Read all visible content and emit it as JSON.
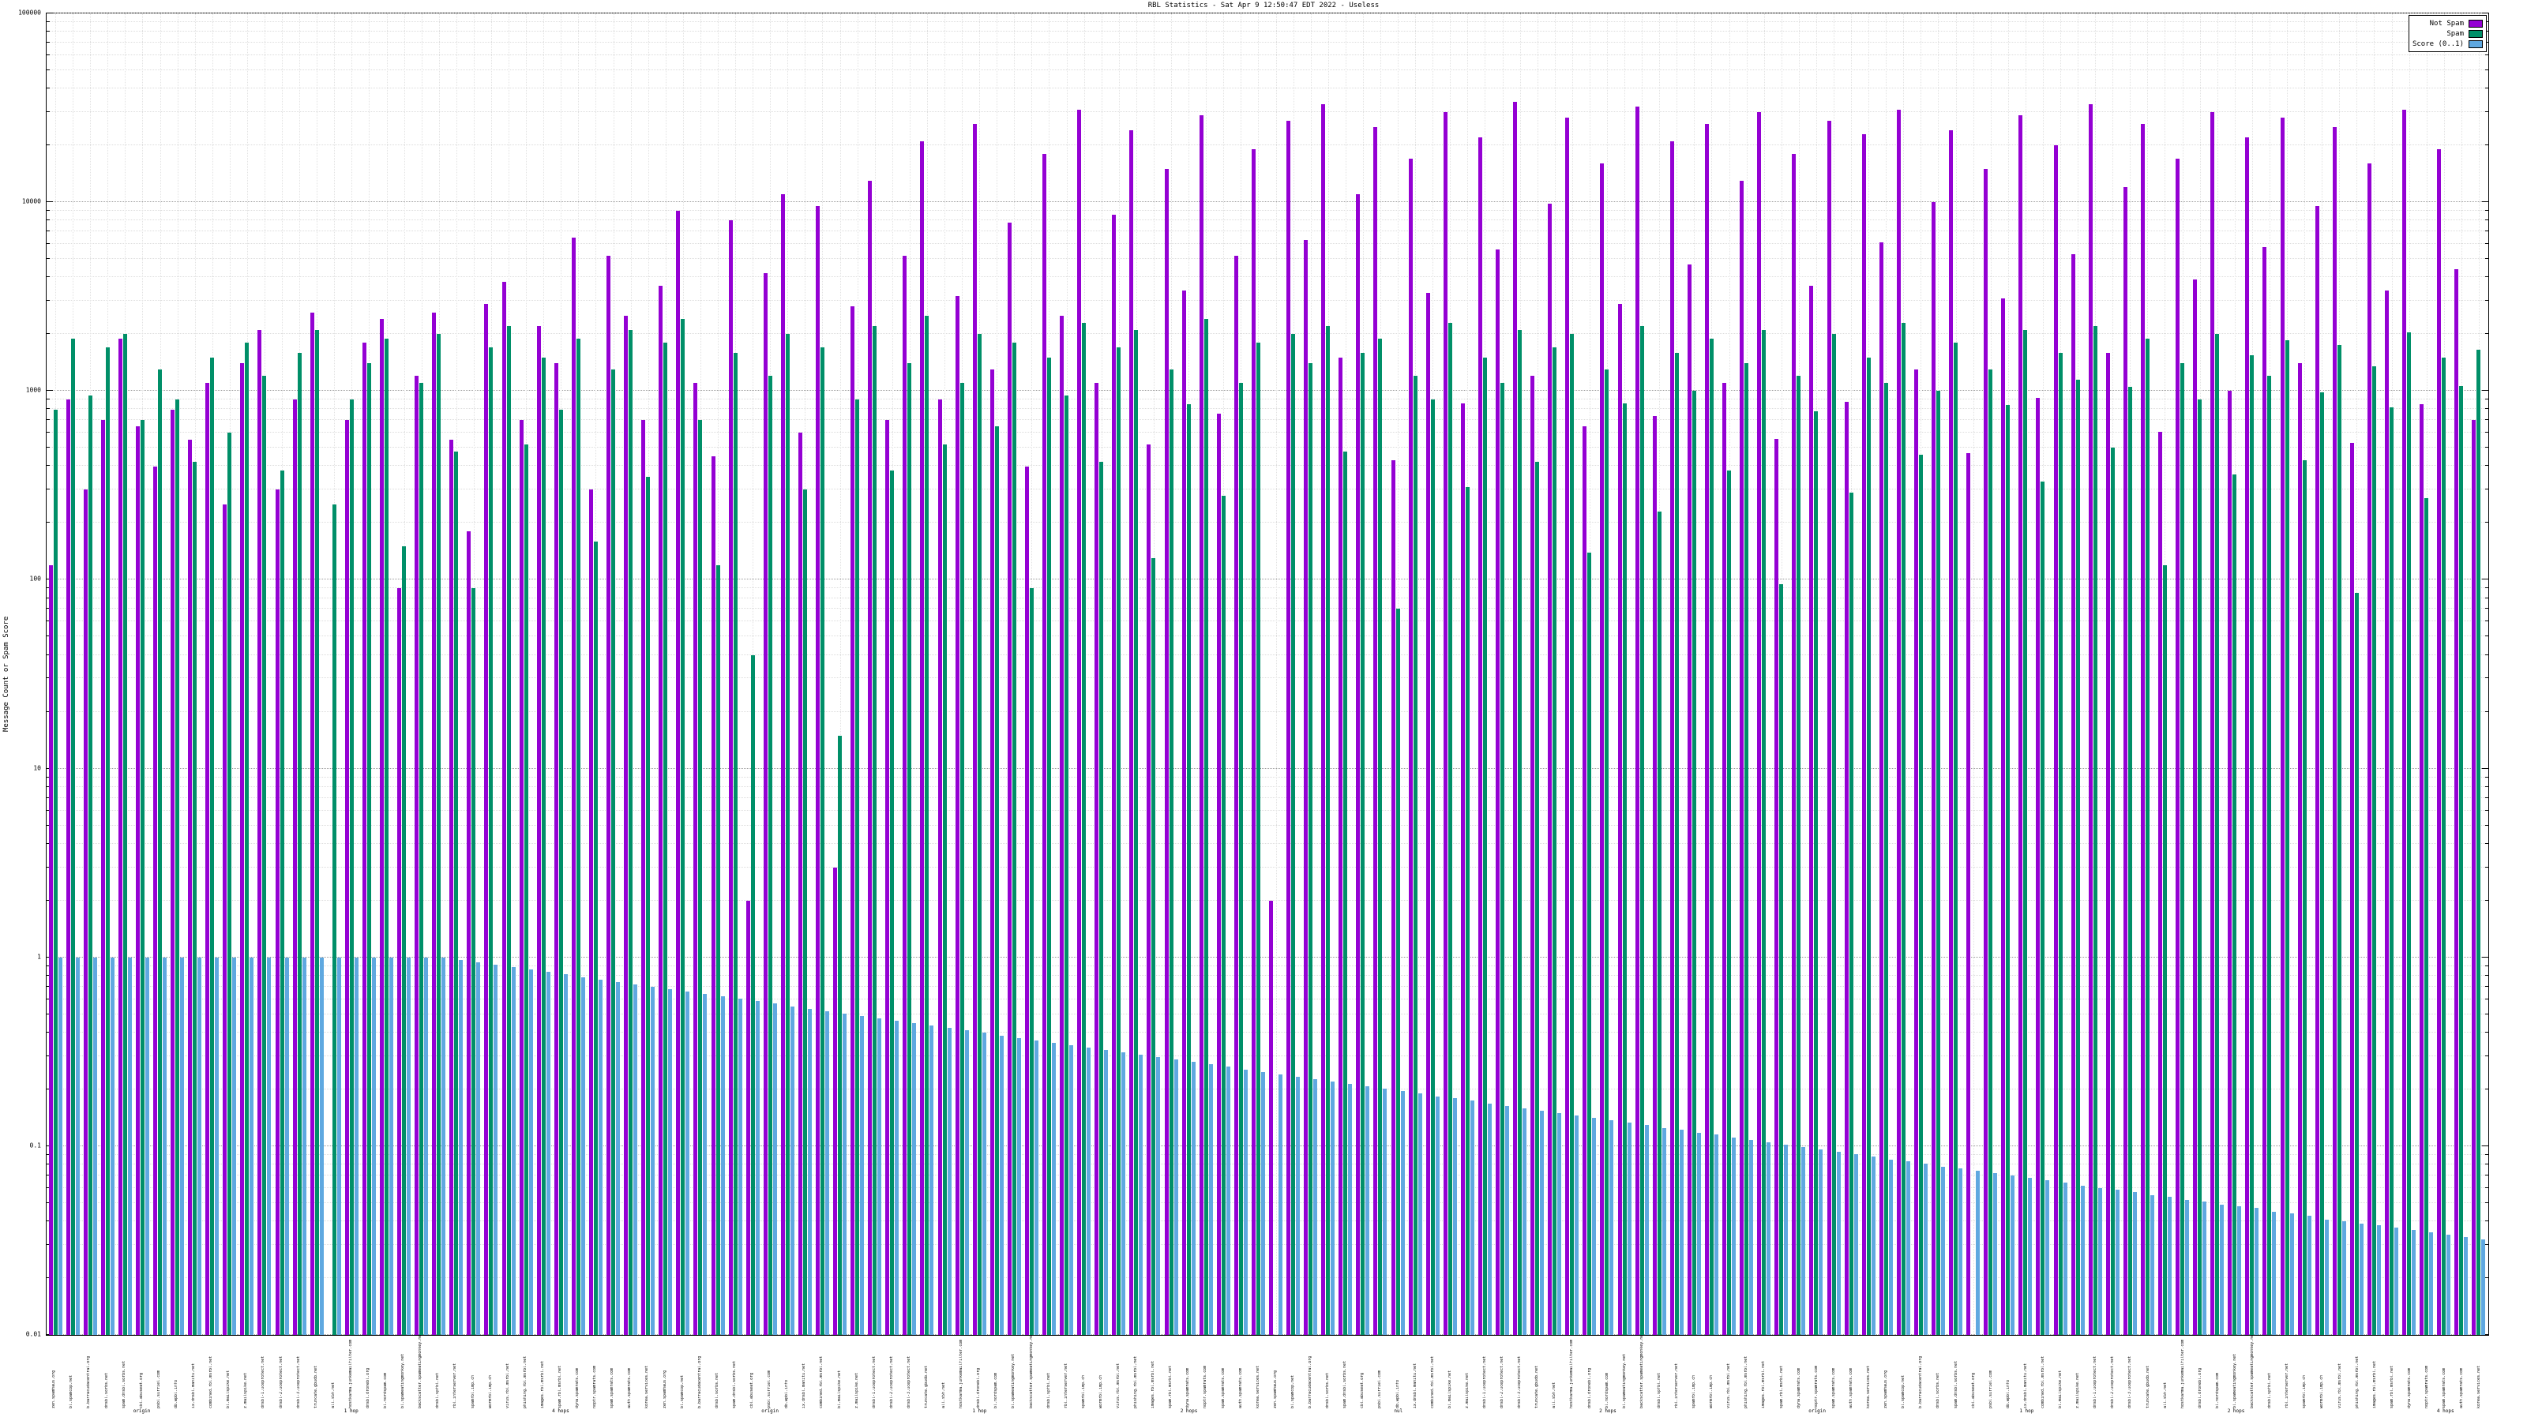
{
  "title": "RBL Statistics - Sat Apr 9 12:50:47 EDT 2022 - Useless",
  "y_axis": {
    "label": "Message Count or Spam Score"
  },
  "legend": [
    {
      "label": "Not Spam",
      "color": "#9400d3"
    },
    {
      "label": "Spam",
      "color": "#008f68"
    },
    {
      "label": "Score (0..1)",
      "color": "#5fa8e0"
    }
  ],
  "chart_data": {
    "type": "bar",
    "log_scale": true,
    "ylim": [
      0.01,
      100000
    ],
    "grid": true,
    "legend_position": "top-right",
    "y_ticks": [
      {
        "v": 0.01,
        "label": "0.01"
      },
      {
        "v": 0.1,
        "label": "0.1"
      },
      {
        "v": 1,
        "label": "1"
      },
      {
        "v": 10,
        "label": "10"
      },
      {
        "v": 100,
        "label": "100"
      },
      {
        "v": 1000,
        "label": "1000"
      },
      {
        "v": 10000,
        "label": "10000"
      },
      {
        "v": 100000,
        "label": "100000"
      }
    ],
    "categories": [
      "zen.spamhaus.org",
      "bl.spamcop.net",
      "b.barracudacentral.org",
      "dnsbl.sorbs.net",
      "spam.dnsbl.sorbs.net",
      "cbl.abuseat.org",
      "psbl.surriel.com",
      "db.wpbl.info",
      "ix.dnsbl.manitu.net",
      "combined.rbl.msrbl.net",
      "bl.mailspike.net",
      "z.mailspike.net",
      "dnsbl-1.uceprotect.net",
      "dnsbl-2.uceprotect.net",
      "dnsbl-3.uceprotect.net",
      "truncate.gbudb.net",
      "all.s5h.net",
      "hostkarma.junkemailfilter.com",
      "dnsbl.dronebl.org",
      "bl.nordspam.com",
      "bl.spameatingmonkey.net",
      "backscatter.spameatingmonkey.net",
      "dnsbl.spfbl.net",
      "rbl.interserver.net",
      "spamrbl.imp.ch",
      "wormrbl.imp.ch",
      "virus.rbl.msrbl.net",
      "phishing.rbl.msrbl.net",
      "images.rbl.msrbl.net",
      "spam.rbl.msrbl.net",
      "dyna.spamrats.com",
      "noptr.spamrats.com",
      "spam.spamrats.com",
      "auth.spamrats.com",
      "korea.services.net",
      "zen.spamhaus.org",
      "bl.spamcop.net",
      "b.barracudacentral.org",
      "dnsbl.sorbs.net",
      "spam.dnsbl.sorbs.net",
      "cbl.abuseat.org",
      "psbl.surriel.com",
      "db.wpbl.info",
      "ix.dnsbl.manitu.net",
      "combined.rbl.msrbl.net",
      "bl.mailspike.net",
      "z.mailspike.net",
      "dnsbl-1.uceprotect.net",
      "dnsbl-2.uceprotect.net",
      "dnsbl-3.uceprotect.net",
      "truncate.gbudb.net",
      "all.s5h.net",
      "hostkarma.junkemailfilter.com",
      "dnsbl.dronebl.org",
      "bl.nordspam.com",
      "bl.spameatingmonkey.net",
      "backscatter.spameatingmonkey.net",
      "dnsbl.spfbl.net",
      "rbl.interserver.net",
      "spamrbl.imp.ch",
      "wormrbl.imp.ch",
      "virus.rbl.msrbl.net",
      "phishing.rbl.msrbl.net",
      "images.rbl.msrbl.net",
      "spam.rbl.msrbl.net",
      "dyna.spamrats.com",
      "noptr.spamrats.com",
      "spam.spamrats.com",
      "auth.spamrats.com",
      "korea.services.net",
      "zen.spamhaus.org",
      "bl.spamcop.net",
      "b.barracudacentral.org",
      "dnsbl.sorbs.net",
      "spam.dnsbl.sorbs.net",
      "cbl.abuseat.org",
      "psbl.surriel.com",
      "db.wpbl.info",
      "ix.dnsbl.manitu.net",
      "combined.rbl.msrbl.net",
      "bl.mailspike.net",
      "z.mailspike.net",
      "dnsbl-1.uceprotect.net",
      "dnsbl-2.uceprotect.net",
      "dnsbl-3.uceprotect.net",
      "truncate.gbudb.net",
      "all.s5h.net",
      "hostkarma.junkemailfilter.com",
      "dnsbl.dronebl.org",
      "bl.nordspam.com",
      "bl.spameatingmonkey.net",
      "backscatter.spameatingmonkey.net",
      "dnsbl.spfbl.net",
      "rbl.interserver.net",
      "spamrbl.imp.ch",
      "wormrbl.imp.ch",
      "virus.rbl.msrbl.net",
      "phishing.rbl.msrbl.net",
      "images.rbl.msrbl.net",
      "spam.rbl.msrbl.net",
      "dyna.spamrats.com",
      "noptr.spamrats.com",
      "spam.spamrats.com",
      "auth.spamrats.com",
      "korea.services.net",
      "zen.spamhaus.org",
      "bl.spamcop.net",
      "b.barracudacentral.org",
      "dnsbl.sorbs.net",
      "spam.dnsbl.sorbs.net",
      "cbl.abuseat.org",
      "psbl.surriel.com",
      "db.wpbl.info",
      "ix.dnsbl.manitu.net",
      "combined.rbl.msrbl.net",
      "bl.mailspike.net",
      "z.mailspike.net",
      "dnsbl-1.uceprotect.net",
      "dnsbl-2.uceprotect.net",
      "dnsbl-3.uceprotect.net",
      "truncate.gbudb.net",
      "all.s5h.net",
      "hostkarma.junkemailfilter.com",
      "dnsbl.dronebl.org",
      "bl.nordspam.com",
      "bl.spameatingmonkey.net",
      "backscatter.spameatingmonkey.net",
      "dnsbl.spfbl.net",
      "rbl.interserver.net",
      "spamrbl.imp.ch",
      "wormrbl.imp.ch",
      "virus.rbl.msrbl.net",
      "phishing.rbl.msrbl.net",
      "images.rbl.msrbl.net",
      "spam.rbl.msrbl.net",
      "dyna.spamrats.com",
      "noptr.spamrats.com",
      "spam.spamrats.com",
      "auth.spamrats.com",
      "korea.services.net"
    ],
    "sub_labels": [
      {
        "index": 5,
        "text": "origin"
      },
      {
        "index": 17,
        "text": "1 hop"
      },
      {
        "index": 29,
        "text": "4 hops"
      },
      {
        "index": 41,
        "text": "origin"
      },
      {
        "index": 53,
        "text": "1 hop"
      },
      {
        "index": 65,
        "text": "2 hops"
      },
      {
        "index": 77,
        "text": "nul"
      },
      {
        "index": 89,
        "text": "2 hops"
      },
      {
        "index": 101,
        "text": "origin"
      },
      {
        "index": 113,
        "text": "1 hop"
      },
      {
        "index": 125,
        "text": "2 hops"
      },
      {
        "index": 137,
        "text": "4 hops"
      }
    ],
    "series": [
      {
        "name": "Not Spam",
        "color": "#9400d3",
        "values": [
          120,
          900,
          300,
          700,
          1900,
          650,
          400,
          800,
          550,
          1100,
          250,
          1400,
          2100,
          300,
          900,
          2600,
          0,
          700,
          1800,
          2400,
          90,
          1200,
          2600,
          550,
          180,
          2900,
          3800,
          700,
          2200,
          1400,
          6500,
          300,
          5200,
          2500,
          700,
          3600,
          9000,
          1100,
          450,
          8000,
          2,
          4200,
          11000,
          600,
          9500,
          3,
          2800,
          13000,
          700,
          5200,
          21000,
          900,
          3200,
          26000,
          1300,
          7800,
          400,
          18000,
          2500,
          31000,
          1100,
          8600,
          24000,
          520,
          15000,
          3400,
          29000,
          760,
          5200,
          19000,
          2,
          27000,
          6300,
          33000,
          1500,
          11000,
          25000,
          430,
          17000,
          3300,
          30000,
          860,
          22000,
          5600,
          34000,
          1200,
          9800,
          28000,
          650,
          16000,
          2900,
          32000,
          740,
          21000,
          4700,
          26000,
          1100,
          13000,
          30000,
          560,
          18000,
          3600,
          27000,
          880,
          23000,
          6100,
          31000,
          1300,
          10000,
          24000,
          470,
          15000,
          3100,
          29000,
          920,
          20000,
          5300,
          33000,
          1600,
          12000,
          26000,
          610,
          17000,
          3900,
          30000,
          1000,
          22000,
          5800,
          28000,
          1400,
          9500,
          25000,
          530,
          16000,
          3400,
          31000,
          850,
          19000,
          4400,
          700
        ]
      },
      {
        "name": "Spam",
        "color": "#008f68",
        "values": [
          800,
          1900,
          950,
          1700,
          2000,
          700,
          1300,
          900,
          420,
          1500,
          600,
          1800,
          1200,
          380,
          1600,
          2100,
          250,
          900,
          1400,
          1900,
          150,
          1100,
          2000,
          480,
          90,
          1700,
          2200,
          520,
          1500,
          800,
          1900,
          160,
          1300,
          2100,
          350,
          1800,
          2400,
          700,
          120,
          1600,
          40,
          1200,
          2000,
          300,
          1700,
          15,
          900,
          2200,
          380,
          1400,
          2500,
          520,
          1100,
          2000,
          650,
          1800,
          90,
          1500,
          950,
          2300,
          420,
          1700,
          2100,
          130,
          1300,
          850,
          2400,
          280,
          1100,
          1800,
          0,
          2000,
          1400,
          2200,
          480,
          1600,
          1900,
          70,
          1200,
          900,
          2300,
          310,
          1500,
          1100,
          2100,
          420,
          1700,
          2000,
          140,
          1300,
          860,
          2200,
          230,
          1600,
          1000,
          1900,
          380,
          1400,
          2100,
          95,
          1200,
          780,
          2000,
          290,
          1500,
          1100,
          2300,
          460,
          1000,
          1800,
          0,
          1300,
          840,
          2100,
          330,
          1600,
          1150,
          2200,
          500,
          1050,
          1900,
          120,
          1400,
          900,
          2000,
          360,
          1550,
          1200,
          1850,
          430,
          980,
          1750,
          85,
          1350,
          820,
          2050,
          270,
          1500,
          1060,
          1650
        ]
      },
      {
        "name": "Score (0..1)",
        "color": "#5fa8e0",
        "values": [
          1,
          1,
          1,
          1,
          1,
          1,
          1,
          1,
          1,
          1,
          1,
          1,
          1,
          1,
          1,
          1,
          1,
          1,
          1,
          1,
          1,
          1,
          1,
          0.971,
          0.942,
          0.915,
          0.888,
          0.862,
          0.837,
          0.812,
          0.788,
          0.765,
          0.743,
          0.721,
          0.7,
          0.68,
          0.66,
          0.64,
          0.622,
          0.603,
          0.586,
          0.569,
          0.552,
          0.536,
          0.52,
          0.505,
          0.49,
          0.476,
          0.462,
          0.448,
          0.435,
          0.422,
          0.41,
          0.398,
          0.386,
          0.375,
          0.364,
          0.354,
          0.343,
          0.333,
          0.323,
          0.314,
          0.305,
          0.296,
          0.287,
          0.279,
          0.271,
          0.263,
          0.255,
          0.248,
          0.24,
          0.233,
          0.227,
          0.22,
          0.214,
          0.207,
          0.201,
          0.195,
          0.19,
          0.184,
          0.179,
          0.174,
          0.168,
          0.164,
          0.159,
          0.154,
          0.15,
          0.145,
          0.141,
          0.137,
          0.133,
          0.129,
          0.125,
          0.122,
          0.118,
          0.115,
          0.111,
          0.108,
          0.105,
          0.102,
          0.099,
          0.096,
          0.093,
          0.091,
          0.088,
          0.085,
          0.083,
          0.081,
          0.078,
          0.076,
          0.074,
          0.072,
          0.07,
          0.068,
          0.066,
          0.064,
          0.062,
          0.06,
          0.059,
          0.057,
          0.055,
          0.054,
          0.052,
          0.051,
          0.049,
          0.048,
          0.047,
          0.045,
          0.044,
          0.043,
          0.041,
          0.04,
          0.039,
          0.038,
          0.037,
          0.036,
          0.035,
          0.034,
          0.033,
          0.032
        ]
      }
    ]
  }
}
